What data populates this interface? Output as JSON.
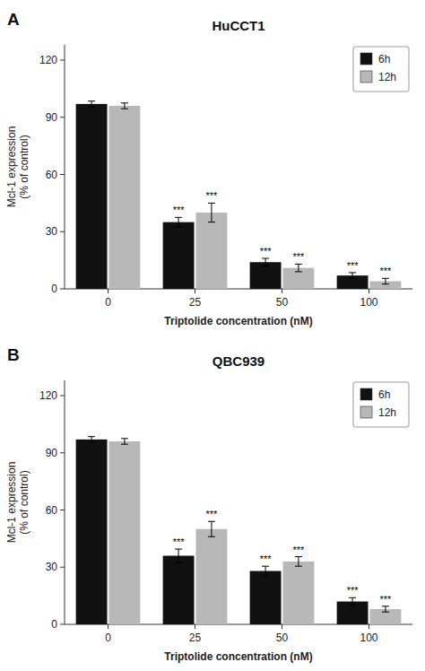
{
  "chart_data": [
    {
      "type": "bar",
      "title": "HuCCT1",
      "annotations": [
        "A"
      ],
      "x_label": "Triptolide concentration (nM)",
      "y_label": "Mcl-1 expression\n(% of control)",
      "categories": [
        "0",
        "25",
        "50",
        "100"
      ],
      "series": [
        {
          "name": "6h",
          "color": "#111111",
          "values": [
            97,
            35,
            14,
            7
          ],
          "errors": [
            1.5,
            2.5,
            2.0,
            1.5
          ],
          "annotations": [
            null,
            "***",
            "***",
            "***"
          ]
        },
        {
          "name": "12h",
          "color": "#b8b8b8",
          "values": [
            96,
            40,
            11,
            4
          ],
          "errors": [
            1.5,
            5.0,
            2.0,
            1.5
          ],
          "annotations": [
            null,
            "***",
            "***",
            "***"
          ]
        }
      ],
      "ylim": [
        0,
        128
      ],
      "yticks": [
        0,
        30,
        60,
        90,
        120
      ],
      "grid": false,
      "legend": "upper right"
    },
    {
      "type": "bar",
      "title": "QBC939",
      "annotations": [
        "B"
      ],
      "x_label": "Triptolide concentration (nM)",
      "y_label": "Mcl-1 expression\n(% of control)",
      "categories": [
        "0",
        "25",
        "50",
        "100"
      ],
      "series": [
        {
          "name": "6h",
          "color": "#111111",
          "values": [
            97,
            36,
            28,
            12
          ],
          "errors": [
            1.5,
            3.5,
            2.5,
            2.0
          ],
          "annotations": [
            null,
            "***",
            "***",
            "***"
          ]
        },
        {
          "name": "12h",
          "color": "#b8b8b8",
          "values": [
            96,
            50,
            33,
            8
          ],
          "errors": [
            1.5,
            4.0,
            2.5,
            1.5
          ],
          "annotations": [
            null,
            "***",
            "***",
            "***"
          ]
        }
      ],
      "ylim": [
        0,
        128
      ],
      "yticks": [
        0,
        30,
        60,
        90,
        120
      ],
      "grid": false,
      "legend": "upper right"
    }
  ]
}
